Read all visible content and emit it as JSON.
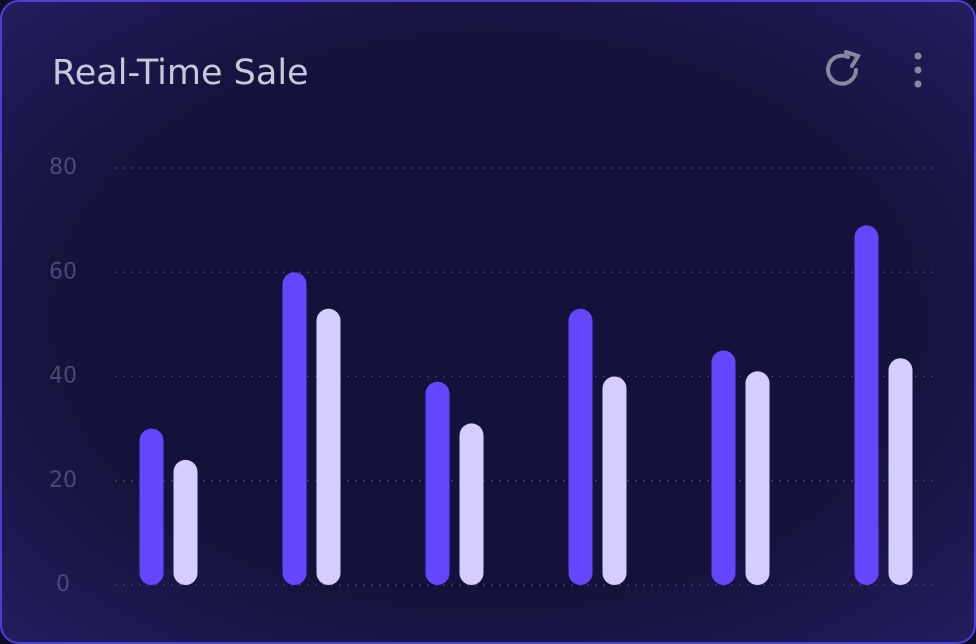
{
  "chart_data": {
    "type": "bar",
    "title": "Real-Time Sale",
    "categories": [
      null,
      null,
      null,
      null,
      null,
      null
    ],
    "series": [
      {
        "color": "#6446ff",
        "values": [
          30,
          60,
          39,
          53,
          45,
          69
        ]
      },
      {
        "color": "#d5cdff",
        "values": [
          24,
          53,
          31,
          40,
          41,
          43.5
        ]
      }
    ],
    "ylim": [
      0,
      80
    ],
    "yticks": [
      0,
      20,
      40,
      60,
      80
    ],
    "grid": true
  }
}
